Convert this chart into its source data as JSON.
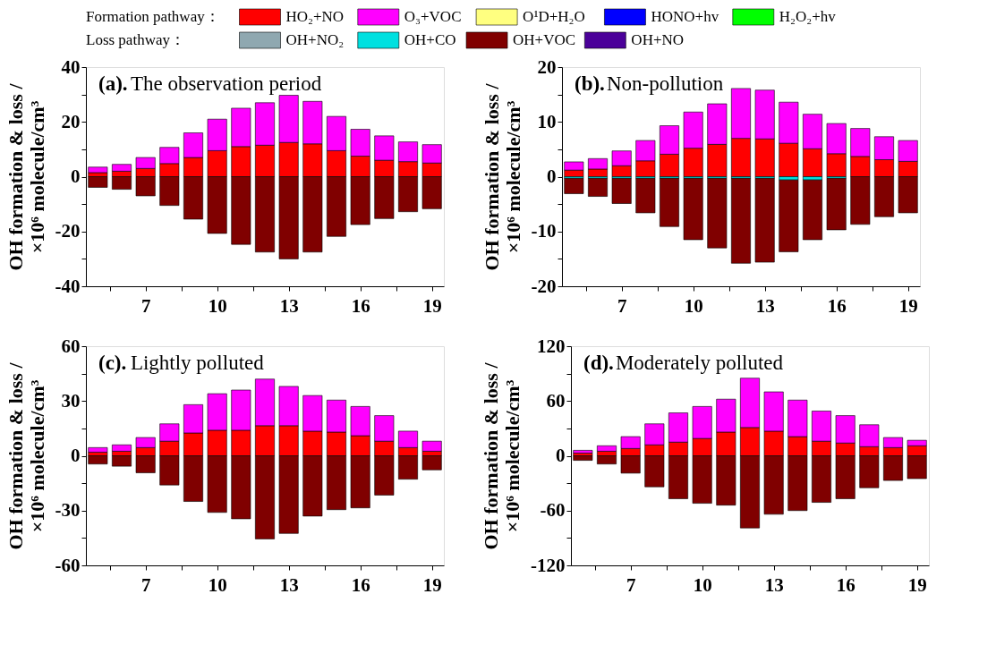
{
  "chart_data": [
    {
      "type": "bar",
      "stacked": true,
      "title": "(a).The observation period",
      "ylabel": "OH formation & loss / ×10⁶ molecule/cm³",
      "legend": "top",
      "legend_title": "Formation pathway：",
      "annotations": [
        "Loss pathway："
      ],
      "x": [
        5,
        6,
        7,
        8,
        9,
        10,
        11,
        12,
        13,
        14,
        15,
        16,
        17,
        18,
        19
      ],
      "xlim": [
        4.5,
        19.5
      ],
      "xticks": [
        {
          "value": 5.5,
          "label": null
        },
        7,
        {
          "value": 8.5,
          "label": null
        },
        10,
        {
          "value": 11.5,
          "label": null
        },
        13,
        {
          "value": 14.5,
          "label": null
        },
        16,
        {
          "value": 17.5,
          "label": null
        },
        19
      ],
      "ylim": [
        -40,
        40
      ],
      "yticks": [
        -40,
        {
          "value": -30,
          "label": null
        },
        -20,
        {
          "value": -10,
          "label": null
        },
        0,
        {
          "value": 10,
          "label": null
        },
        20,
        {
          "value": 30,
          "label": null
        },
        40
      ],
      "series": [
        {
          "name": "HO₂+NO",
          "color": "#ff0000",
          "values": [
            1.5,
            2,
            3,
            4.8,
            7,
            9.5,
            11,
            11.5,
            12.5,
            12,
            9.5,
            7.5,
            6,
            5.5,
            5
          ]
        },
        {
          "name": "O₃+VOC",
          "color": "#ff00ff",
          "values": [
            2,
            2.5,
            4,
            5.9,
            9,
            11.5,
            14,
            15.5,
            17.2,
            15.5,
            12.5,
            9.8,
            8.9,
            7.2,
            6.7
          ]
        },
        {
          "name": "O¹D+H₂O",
          "color": "#ffff80",
          "values": [
            null,
            null,
            null,
            null,
            null,
            null,
            null,
            null,
            null,
            null,
            null,
            null,
            null,
            null,
            null
          ]
        },
        {
          "name": "HONO+hv",
          "color": "#0000ff",
          "values": [
            null,
            null,
            null,
            null,
            null,
            null,
            null,
            null,
            null,
            null,
            null,
            null,
            null,
            null,
            null
          ]
        },
        {
          "name": "H₂O₂+hv",
          "color": "#00ff00",
          "values": [
            null,
            null,
            null,
            null,
            null,
            null,
            null,
            null,
            null,
            null,
            null,
            null,
            null,
            null,
            null
          ]
        },
        {
          "name": "OH+NO₂",
          "color": "#8fa8b0",
          "values": [
            null,
            null,
            null,
            null,
            null,
            null,
            null,
            null,
            null,
            null,
            null,
            null,
            null,
            null,
            null
          ]
        },
        {
          "name": "OH+CO",
          "color": "#00e0e0",
          "values": [
            null,
            null,
            null,
            null,
            null,
            null,
            null,
            null,
            null,
            null,
            null,
            null,
            null,
            null,
            null
          ]
        },
        {
          "name": "OH+VOC",
          "color": "#800000",
          "values": [
            -3.9,
            -4.6,
            -7,
            -10.5,
            -15.5,
            -20.7,
            -24.7,
            -27.5,
            -30,
            -27.5,
            -21.8,
            -17.5,
            -15.3,
            -12.8,
            -11.7
          ]
        },
        {
          "name": "OH+NO",
          "color": "#4b0099",
          "values": [
            null,
            null,
            null,
            null,
            null,
            null,
            null,
            null,
            null,
            null,
            null,
            null,
            null,
            null,
            null
          ]
        }
      ]
    },
    {
      "type": "bar",
      "stacked": true,
      "title": "(b).Non-pollution",
      "ylabel": "OH formation & loss / ×10⁶ molecule/cm³",
      "x": [
        5,
        6,
        7,
        8,
        9,
        10,
        11,
        12,
        13,
        14,
        15,
        16,
        17,
        18,
        19
      ],
      "xlim": [
        4.5,
        19.5
      ],
      "xticks": [
        {
          "value": 5.5,
          "label": null
        },
        7,
        {
          "value": 8.5,
          "label": null
        },
        10,
        {
          "value": 11.5,
          "label": null
        },
        13,
        {
          "value": 14.5,
          "label": null
        },
        16,
        {
          "value": 17.5,
          "label": null
        },
        19
      ],
      "ylim": [
        -20,
        20
      ],
      "yticks": [
        -20,
        {
          "value": -15,
          "label": null
        },
        -10,
        {
          "value": -5,
          "label": null
        },
        0,
        {
          "value": 5,
          "label": null
        },
        10,
        {
          "value": 15,
          "label": null
        },
        20
      ],
      "series": [
        {
          "color": "#ff0000",
          "values": [
            1.2,
            1.4,
            2,
            2.9,
            4.1,
            5.2,
            5.9,
            7,
            6.9,
            6.1,
            5.1,
            4.2,
            3.7,
            3.1,
            2.8
          ]
        },
        {
          "color": "#ff00ff",
          "values": [
            1.5,
            1.9,
            2.7,
            3.7,
            5.2,
            6.6,
            7.4,
            9.1,
            8.9,
            7.5,
            6.3,
            5.5,
            5.1,
            4.2,
            3.8
          ]
        },
        {
          "color": "#00e0e0",
          "values": [
            -0.3,
            -0.3,
            -0.3,
            -0.3,
            -0.3,
            -0.3,
            -0.3,
            -0.3,
            -0.3,
            -0.6,
            -0.6,
            -0.3,
            null,
            null,
            null
          ]
        },
        {
          "color": "#800000",
          "values": [
            -2.8,
            -3.3,
            -4.6,
            -6.3,
            -8.8,
            -11.2,
            -12.7,
            -15.5,
            -15.3,
            -13.1,
            -10.9,
            -9.4,
            -8.7,
            -7.3,
            -6.6
          ]
        }
      ]
    },
    {
      "type": "bar",
      "stacked": true,
      "title": "(c).Lightly polluted",
      "ylabel": "OH formation & loss / ×10⁶ molecule/cm³",
      "x": [
        5,
        6,
        7,
        8,
        9,
        10,
        11,
        12,
        13,
        14,
        15,
        16,
        17,
        18,
        19
      ],
      "xlim": [
        4.5,
        19.5
      ],
      "xticks": [
        {
          "value": 5.5,
          "label": null
        },
        7,
        {
          "value": 8.5,
          "label": null
        },
        10,
        {
          "value": 11.5,
          "label": null
        },
        13,
        {
          "value": 14.5,
          "label": null
        },
        16,
        {
          "value": 17.5,
          "label": null
        },
        19
      ],
      "ylim": [
        -60,
        60
      ],
      "yticks": [
        -60,
        {
          "value": -45,
          "label": null
        },
        -30,
        {
          "value": -15,
          "label": null
        },
        0,
        {
          "value": 15,
          "label": null
        },
        30,
        {
          "value": 45,
          "label": null
        },
        60
      ],
      "series": [
        {
          "color": "#ff0000",
          "values": [
            2,
            2.5,
            4.5,
            8,
            12.5,
            14,
            14,
            16.5,
            16.5,
            13.5,
            13,
            11,
            8,
            4.5,
            2.5
          ]
        },
        {
          "color": "#ff00ff",
          "values": [
            2.5,
            3.5,
            5.5,
            9.5,
            15.5,
            20,
            22,
            25.5,
            21.5,
            19.5,
            17.5,
            16,
            14,
            9,
            5.5
          ]
        },
        {
          "color": "#800000",
          "values": [
            -4.5,
            -5.7,
            -9.3,
            -16,
            -25,
            -31,
            -34.5,
            -45.5,
            -42.5,
            -33,
            -29.5,
            -28.5,
            -21.5,
            -12.8,
            -7.7
          ]
        }
      ]
    },
    {
      "type": "bar",
      "stacked": true,
      "title": "(d).Moderately polluted",
      "ylabel": "OH formation & loss / ×10⁶ molecule/cm³",
      "x": [
        5,
        6,
        7,
        8,
        9,
        10,
        11,
        12,
        13,
        14,
        15,
        16,
        17,
        18,
        19
      ],
      "xlim": [
        4.5,
        19.5
      ],
      "xticks": [
        {
          "value": 5.5,
          "label": null
        },
        7,
        {
          "value": 8.5,
          "label": null
        },
        10,
        {
          "value": 11.5,
          "label": null
        },
        13,
        {
          "value": 14.5,
          "label": null
        },
        16,
        {
          "value": 17.5,
          "label": null
        },
        19
      ],
      "ylim": [
        -120,
        120
      ],
      "yticks": [
        -120,
        {
          "value": -90,
          "label": null
        },
        -60,
        {
          "value": -30,
          "label": null
        },
        0,
        {
          "value": 30,
          "label": null
        },
        60,
        {
          "value": 90,
          "label": null
        },
        120
      ],
      "series": [
        {
          "color": "#ff0000",
          "values": [
            3,
            5,
            8,
            12,
            15,
            19,
            26,
            31,
            27,
            21,
            16,
            14,
            10,
            9,
            11
          ]
        },
        {
          "color": "#ff00ff",
          "values": [
            3,
            6,
            13,
            23,
            32,
            35,
            36,
            54,
            43,
            40,
            33,
            30,
            24,
            11,
            6
          ]
        },
        {
          "color": "#800000",
          "values": [
            -5,
            -9,
            -19,
            -34,
            -47,
            -52,
            -54,
            -79,
            -64,
            -60,
            -51,
            -47,
            -35,
            -27,
            -25
          ]
        }
      ]
    }
  ]
}
